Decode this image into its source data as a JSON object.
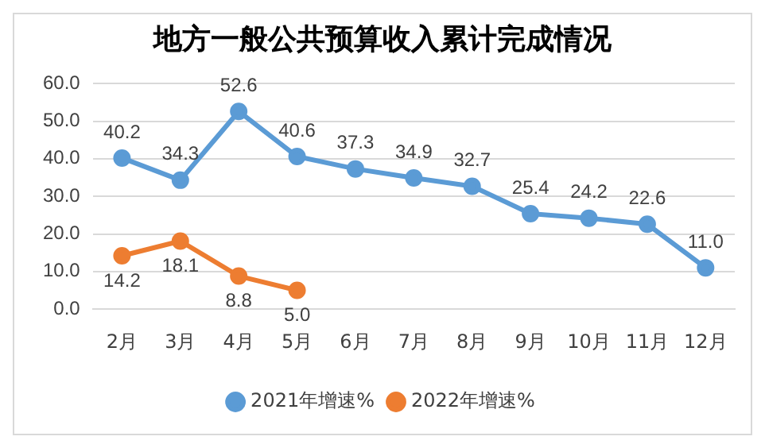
{
  "chart_data": {
    "type": "line",
    "title": "地方一般公共预算收入累计完成情况",
    "categories": [
      "2月",
      "3月",
      "4月",
      "5月",
      "6月",
      "7月",
      "8月",
      "9月",
      "10月",
      "11月",
      "12月"
    ],
    "series": [
      {
        "name": "2021年增速%",
        "color": "#5b9bd5",
        "values": [
          40.2,
          34.3,
          52.6,
          40.6,
          37.3,
          34.9,
          32.7,
          25.4,
          24.2,
          22.6,
          11.0
        ],
        "value_labels": [
          "40.2",
          "34.3",
          "52.6",
          "40.6",
          "37.3",
          "34.9",
          "32.7",
          "25.4",
          "24.2",
          "22.6",
          "11.0"
        ]
      },
      {
        "name": "2022年增速%",
        "color": "#ed7d31",
        "values": [
          14.2,
          18.1,
          8.8,
          5.0,
          null,
          null,
          null,
          null,
          null,
          null,
          null
        ],
        "value_labels": [
          "14.2",
          "18.1",
          "8.8",
          "5.0",
          null,
          null,
          null,
          null,
          null,
          null,
          null
        ]
      }
    ],
    "ylim": [
      0,
      60
    ],
    "yticks": [
      {
        "value": 0,
        "label": "0.0"
      },
      {
        "value": 10,
        "label": "10.0"
      },
      {
        "value": 20,
        "label": "20.0"
      },
      {
        "value": 30,
        "label": "30.0"
      },
      {
        "value": 40,
        "label": "40.0"
      },
      {
        "value": 50,
        "label": "50.0"
      },
      {
        "value": 60,
        "label": "60.0"
      }
    ],
    "grid": "y",
    "legend": "bottom",
    "marker": "circle",
    "line_style": "solid"
  }
}
